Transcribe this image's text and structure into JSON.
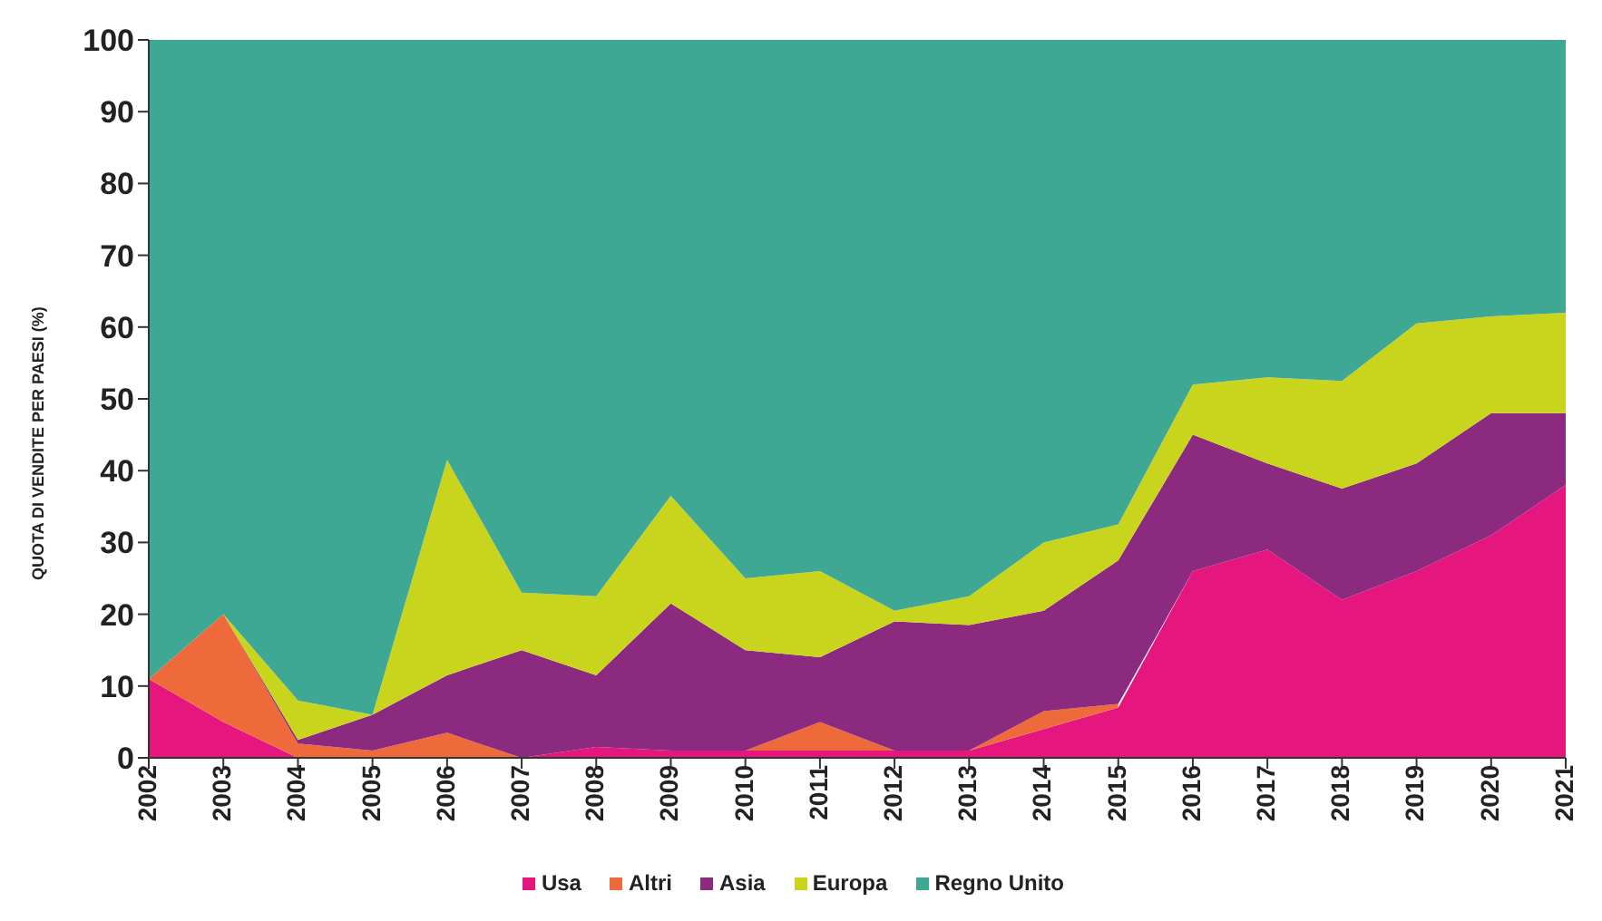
{
  "chart_data": {
    "type": "area",
    "stacked": true,
    "ylabel": "QUOTA DI VENDITE PER PAESI (%)",
    "categories": [
      "2002",
      "2003",
      "2004",
      "2005",
      "2006",
      "2007",
      "2008",
      "2009",
      "2010",
      "2011",
      "2012",
      "2013",
      "2014",
      "2015",
      "2016",
      "2017",
      "2018",
      "2019",
      "2020",
      "2021"
    ],
    "series": [
      {
        "name": "Usa",
        "color": "#e5177f",
        "values": [
          11,
          5,
          0,
          0,
          0,
          0,
          1.5,
          1,
          1,
          1,
          1,
          1,
          4,
          7,
          26,
          29,
          22,
          26,
          31,
          38
        ]
      },
      {
        "name": "Altri",
        "color": "#ee6a3a",
        "values": [
          0,
          15,
          2,
          1,
          3.5,
          0,
          0,
          0,
          0,
          4,
          0,
          0,
          2.5,
          0.5,
          null,
          null,
          null,
          null,
          null,
          null
        ]
      },
      {
        "name": "Asia",
        "color": "#8b2a7e",
        "values": [
          0,
          0,
          0.5,
          5,
          8,
          15,
          10,
          20.5,
          14,
          9,
          18,
          17.5,
          14,
          20,
          19,
          12,
          15.5,
          15,
          17,
          10
        ]
      },
      {
        "name": "Europa",
        "color": "#c9d51c",
        "values": [
          0,
          0,
          5.5,
          0,
          30,
          8,
          11,
          15,
          10,
          12,
          1.5,
          4,
          9.5,
          5,
          7,
          12,
          15,
          19.5,
          13.5,
          14
        ]
      },
      {
        "name": "Regno Unito",
        "color": "#3fa895",
        "values": [
          89,
          80,
          92,
          94,
          58.5,
          77,
          77.5,
          63.5,
          75,
          74,
          79.5,
          77.5,
          70,
          67.5,
          48,
          47,
          47.5,
          39.5,
          38.5,
          38
        ]
      }
    ],
    "ylim": [
      0,
      100
    ],
    "yticks": [
      0,
      10,
      20,
      30,
      40,
      50,
      60,
      70,
      80,
      90,
      100
    ],
    "grid": false,
    "legend": "bottom"
  }
}
